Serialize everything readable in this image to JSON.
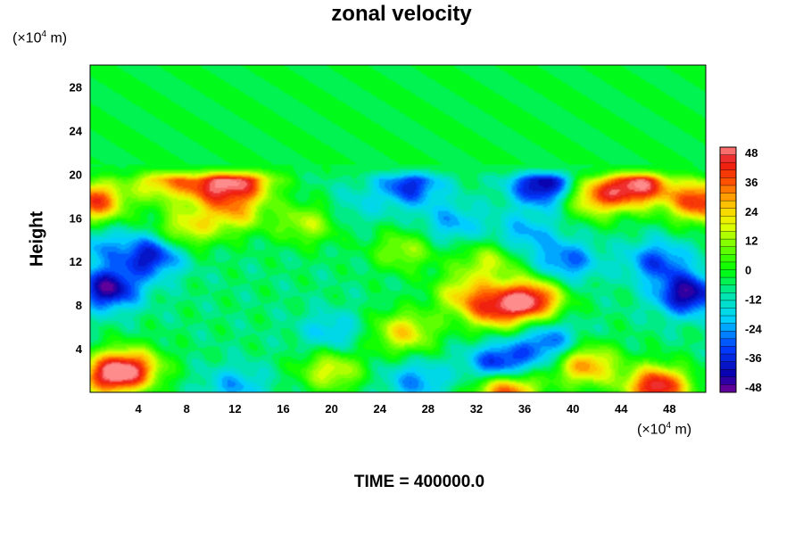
{
  "chart_data": {
    "type": "heatmap",
    "title": "zonal velocity",
    "ylabel": "Height",
    "y_unit_prefix": "(×10",
    "y_unit_exp": "4",
    "y_unit_suffix": " m)",
    "x_unit_prefix": "(×10",
    "x_unit_exp": "4",
    "x_unit_suffix": " m)",
    "xlim": [
      0,
      51
    ],
    "ylim": [
      0,
      30
    ],
    "x_ticks": [
      4,
      8,
      12,
      16,
      20,
      24,
      28,
      32,
      36,
      40,
      44,
      48
    ],
    "y_ticks": [
      4,
      8,
      12,
      16,
      20,
      24,
      28
    ],
    "colorbar": {
      "range": [
        -48,
        48
      ],
      "ticks": [
        48,
        36,
        24,
        12,
        0,
        -12,
        -24,
        -36,
        -48
      ],
      "levels": 32
    },
    "background_value": -6,
    "features": [
      {
        "x": 1.5,
        "y": 9.5,
        "value": -44
      },
      {
        "x": 5,
        "y": 12.5,
        "value": -38
      },
      {
        "x": 49.5,
        "y": 9,
        "value": -44
      },
      {
        "x": 47,
        "y": 12,
        "value": -30
      },
      {
        "x": 34,
        "y": 2.5,
        "value": -40
      },
      {
        "x": 37.5,
        "y": 19,
        "value": -44
      },
      {
        "x": 26.5,
        "y": 19,
        "value": -34
      },
      {
        "x": 39.5,
        "y": 12,
        "value": -28
      },
      {
        "x": 36,
        "y": 14.5,
        "value": -22
      },
      {
        "x": 20,
        "y": 5.5,
        "value": -20
      },
      {
        "x": 12,
        "y": 0.5,
        "value": -22
      },
      {
        "x": 27,
        "y": 1,
        "value": -24
      },
      {
        "x": 30,
        "y": 15.5,
        "value": -22
      },
      {
        "x": 38,
        "y": 4.5,
        "value": -30
      },
      {
        "x": 0.5,
        "y": 13.5,
        "value": -20
      },
      {
        "x": 22,
        "y": 17,
        "value": -14
      },
      {
        "x": 45.5,
        "y": 19,
        "value": 44
      },
      {
        "x": 50.5,
        "y": 17.5,
        "value": 40
      },
      {
        "x": 1.5,
        "y": 1.5,
        "value": 34
      },
      {
        "x": 3.5,
        "y": 2.2,
        "value": 30
      },
      {
        "x": 47,
        "y": 0.5,
        "value": 46
      },
      {
        "x": 10,
        "y": 19,
        "value": 32
      },
      {
        "x": 13,
        "y": 19.5,
        "value": 30
      },
      {
        "x": 6,
        "y": 19.5,
        "value": 24
      },
      {
        "x": 0.3,
        "y": 17.5,
        "value": 38
      },
      {
        "x": 33.5,
        "y": 7.5,
        "value": 28
      },
      {
        "x": 36.5,
        "y": 8.5,
        "value": 44
      },
      {
        "x": 31,
        "y": 9,
        "value": 18
      },
      {
        "x": 26,
        "y": 5.5,
        "value": 22
      },
      {
        "x": 34.5,
        "y": 0.2,
        "value": 40
      },
      {
        "x": 41,
        "y": 2.5,
        "value": 30
      },
      {
        "x": 20,
        "y": 2,
        "value": 18
      },
      {
        "x": 12,
        "y": 16.5,
        "value": 20
      },
      {
        "x": 18,
        "y": 15.5,
        "value": 14
      },
      {
        "x": 42,
        "y": 18,
        "value": 30
      },
      {
        "x": 8,
        "y": 15,
        "value": 18
      },
      {
        "x": 26,
        "y": 13,
        "value": 12
      },
      {
        "x": 33,
        "y": 12,
        "value": 14
      }
    ]
  }
}
